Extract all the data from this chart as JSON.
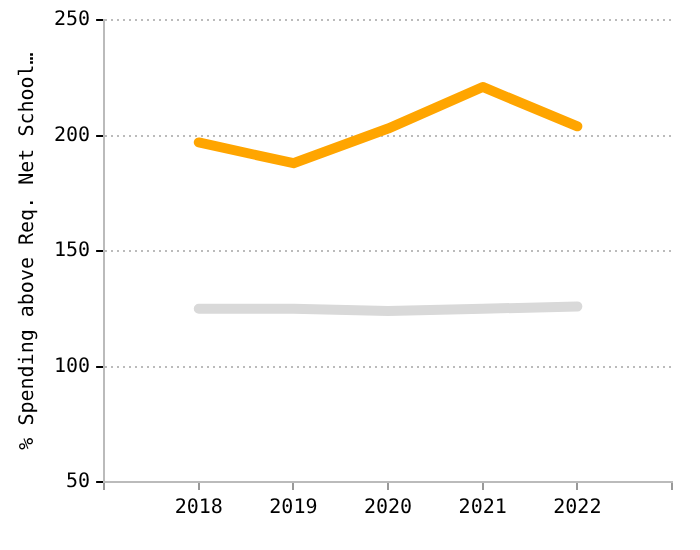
{
  "chart_data": {
    "type": "line",
    "ylabel": "% Spending above Req. Net School…",
    "x": [
      2018,
      2019,
      2020,
      2021,
      2022
    ],
    "xlim": [
      2017,
      2023
    ],
    "xticks": [
      {
        "value": 2017,
        "label": null
      },
      2018,
      2019,
      2020,
      2021,
      2022,
      {
        "value": 2023,
        "label": null
      }
    ],
    "ylim": [
      50,
      250
    ],
    "yticks": [
      50,
      100,
      150,
      200,
      250
    ],
    "series": [
      {
        "color": "#ffa500",
        "values": [
          197,
          188,
          203,
          221,
          204
        ]
      },
      {
        "color": "#d9d9d9",
        "values": [
          125,
          125,
          124,
          125,
          126
        ]
      }
    ],
    "grid": "y",
    "legend": false,
    "marker": "none",
    "line_style": "solid"
  }
}
